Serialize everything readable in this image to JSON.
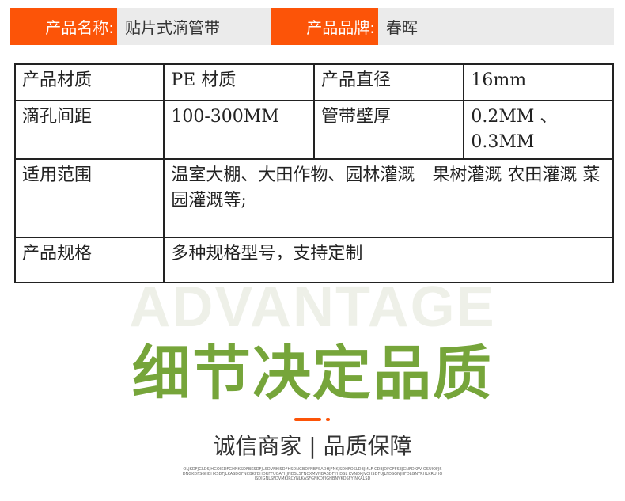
{
  "header": [
    {
      "label": "产品名称:",
      "value": "贴片式滴管带"
    },
    {
      "label": "产品品牌:",
      "value": "春晖"
    }
  ],
  "table": {
    "rows": [
      [
        "产品材质",
        "PE 材质",
        "产品直径",
        "16mm"
      ],
      [
        "滴孔间距",
        "100-300MM",
        "管带壁厚",
        "0.2MM 、0.3MM"
      ],
      [
        "适用范围",
        "温室大棚、大田作物、园林灌溉　果树灌溉 农田灌溉 菜园灌溉等;"
      ],
      [
        "产品规格",
        "多种规格型号，支持定制"
      ]
    ]
  },
  "section": {
    "watermark": "ADVANTAGE",
    "title": "细节决定品质",
    "subtitle": "诚信商家 | 品质保障",
    "fine_print": "OLJKDFJGLDSJHGOIKDFGHNKSDFBKSDFJLSDVNKISDFHSDNGBDFNBFSADHJFNKJSDHFOSLDBJMLF CDBJDFOFFSEJGNFDKFV OSUIOFJSDNGKDFSGHBHKSDFJLKASDGFNCBKFBHDRFFUOAFHJNDSLSFNCXMVNBASDFYHDSL KVNDKJVCHSDFUJLFDSGNJHFDLGNTRHLKRUHOISDJGNLSFDVMKJRCYNLKASFGNKDFJGHBNVKDSFYJNKALSD"
  },
  "colors": {
    "accent": "#fc5408",
    "green": "#76a53a"
  }
}
